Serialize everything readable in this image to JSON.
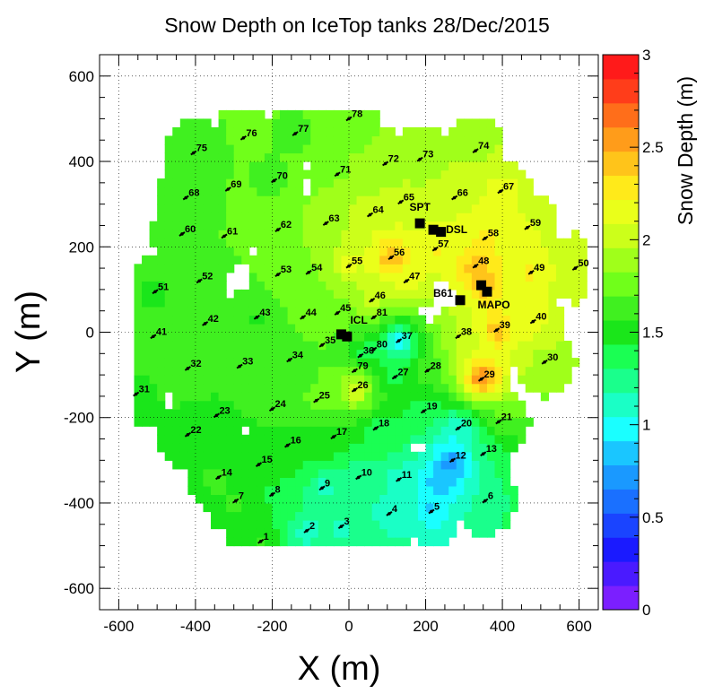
{
  "chart_data": {
    "type": "heatmap",
    "title": "Snow Depth on IceTop tanks 28/Dec/2015",
    "xlabel": "X (m)",
    "ylabel": "Y (m)",
    "zlabel": "Snow Depth (m)",
    "xlim": [
      -650,
      650
    ],
    "ylim": [
      -650,
      650
    ],
    "zlim": [
      0,
      3
    ],
    "x_ticks": [
      -600,
      -400,
      -200,
      0,
      200,
      400,
      600
    ],
    "y_ticks": [
      -600,
      -400,
      -200,
      0,
      200,
      400,
      600
    ],
    "z_ticks": [
      0,
      0.5,
      1,
      1.5,
      2,
      2.5,
      3
    ],
    "grid": true,
    "colorbar": "right",
    "stations": [
      {
        "id": "1",
        "x": -230,
        "y": -490,
        "depth": 1.6
      },
      {
        "id": "2",
        "x": -110,
        "y": -465,
        "depth": 1.0
      },
      {
        "id": "3",
        "x": -20,
        "y": -455,
        "depth": 1.1
      },
      {
        "id": "4",
        "x": 105,
        "y": -425,
        "depth": 1.0
      },
      {
        "id": "5",
        "x": 215,
        "y": -420,
        "depth": 0.8
      },
      {
        "id": "6",
        "x": 355,
        "y": -395,
        "depth": 1.2
      },
      {
        "id": "7",
        "x": -295,
        "y": -395,
        "depth": 1.6
      },
      {
        "id": "8",
        "x": -200,
        "y": -380,
        "depth": 1.4
      },
      {
        "id": "9",
        "x": -70,
        "y": -365,
        "depth": 1.0
      },
      {
        "id": "10",
        "x": 25,
        "y": -340,
        "depth": 1.1
      },
      {
        "id": "11",
        "x": 130,
        "y": -345,
        "depth": 1.0
      },
      {
        "id": "12",
        "x": 270,
        "y": -300,
        "depth": 0.5
      },
      {
        "id": "13",
        "x": 350,
        "y": -285,
        "depth": 1.3
      },
      {
        "id": "14",
        "x": -340,
        "y": -340,
        "depth": 1.6
      },
      {
        "id": "15",
        "x": -235,
        "y": -310,
        "depth": 1.4
      },
      {
        "id": "16",
        "x": -160,
        "y": -265,
        "depth": 1.5
      },
      {
        "id": "17",
        "x": -40,
        "y": -245,
        "depth": 1.5
      },
      {
        "id": "18",
        "x": 70,
        "y": -225,
        "depth": 1.2
      },
      {
        "id": "19",
        "x": 195,
        "y": -185,
        "depth": 1.3
      },
      {
        "id": "20",
        "x": 285,
        "y": -225,
        "depth": 1.0
      },
      {
        "id": "21",
        "x": 390,
        "y": -210,
        "depth": 1.7
      },
      {
        "id": "22",
        "x": -420,
        "y": -240,
        "depth": 1.5
      },
      {
        "id": "23",
        "x": -345,
        "y": -195,
        "depth": 1.5
      },
      {
        "id": "24",
        "x": -200,
        "y": -180,
        "depth": 1.6
      },
      {
        "id": "25",
        "x": -85,
        "y": -160,
        "depth": 1.8
      },
      {
        "id": "26",
        "x": 15,
        "y": -135,
        "depth": 2.3
      },
      {
        "id": "27",
        "x": 120,
        "y": -105,
        "depth": 1.3
      },
      {
        "id": "28",
        "x": 205,
        "y": -90,
        "depth": 1.7
      },
      {
        "id": "29",
        "x": 345,
        "y": -110,
        "depth": 2.8
      },
      {
        "id": "30",
        "x": 510,
        "y": -70,
        "depth": 1.9
      },
      {
        "id": "31",
        "x": -555,
        "y": -145,
        "depth": 1.5
      },
      {
        "id": "32",
        "x": -420,
        "y": -85,
        "depth": 1.6
      },
      {
        "id": "33",
        "x": -285,
        "y": -80,
        "depth": 1.6
      },
      {
        "id": "34",
        "x": -155,
        "y": -65,
        "depth": 1.7
      },
      {
        "id": "35",
        "x": -70,
        "y": -30,
        "depth": 1.7
      },
      {
        "id": "36",
        "x": 30,
        "y": -55,
        "depth": 1.2
      },
      {
        "id": "37",
        "x": 130,
        "y": -20,
        "depth": 0.7
      },
      {
        "id": "38",
        "x": 285,
        "y": -10,
        "depth": 2.0
      },
      {
        "id": "39",
        "x": 385,
        "y": 5,
        "depth": 2.6
      },
      {
        "id": "40",
        "x": 480,
        "y": 25,
        "depth": 2.2
      },
      {
        "id": "41",
        "x": -510,
        "y": -10,
        "depth": 1.6
      },
      {
        "id": "42",
        "x": -375,
        "y": 20,
        "depth": 1.6
      },
      {
        "id": "43",
        "x": -240,
        "y": 35,
        "depth": 1.5
      },
      {
        "id": "44",
        "x": -120,
        "y": 35,
        "depth": 1.7
      },
      {
        "id": "45",
        "x": -30,
        "y": 45,
        "depth": 1.8
      },
      {
        "id": "46",
        "x": 60,
        "y": 75,
        "depth": 2.2
      },
      {
        "id": "47",
        "x": 150,
        "y": 120,
        "depth": 2.3
      },
      {
        "id": "48",
        "x": 330,
        "y": 155,
        "depth": 2.6
      },
      {
        "id": "49",
        "x": 475,
        "y": 140,
        "depth": 2.3
      },
      {
        "id": "50",
        "x": 590,
        "y": 150,
        "depth": 2.0
      },
      {
        "id": "51",
        "x": -505,
        "y": 95,
        "depth": 1.5
      },
      {
        "id": "52",
        "x": -390,
        "y": 120,
        "depth": 1.6
      },
      {
        "id": "53",
        "x": -185,
        "y": 135,
        "depth": 1.7
      },
      {
        "id": "54",
        "x": -105,
        "y": 140,
        "depth": 1.8
      },
      {
        "id": "55",
        "x": 0,
        "y": 155,
        "depth": 2.3
      },
      {
        "id": "56",
        "x": 110,
        "y": 175,
        "depth": 2.6
      },
      {
        "id": "57",
        "x": 225,
        "y": 195,
        "depth": 2.3
      },
      {
        "id": "58",
        "x": 355,
        "y": 220,
        "depth": 2.3
      },
      {
        "id": "59",
        "x": 465,
        "y": 245,
        "depth": 2.1
      },
      {
        "id": "60",
        "x": -435,
        "y": 230,
        "depth": 1.7
      },
      {
        "id": "61",
        "x": -325,
        "y": 225,
        "depth": 1.7
      },
      {
        "id": "62",
        "x": -185,
        "y": 240,
        "depth": 1.8
      },
      {
        "id": "63",
        "x": -60,
        "y": 255,
        "depth": 2.0
      },
      {
        "id": "64",
        "x": 55,
        "y": 275,
        "depth": 2.1
      },
      {
        "id": "65",
        "x": 135,
        "y": 305,
        "depth": 2.1
      },
      {
        "id": "66",
        "x": 275,
        "y": 315,
        "depth": 2.1
      },
      {
        "id": "67",
        "x": 395,
        "y": 330,
        "depth": 2.2
      },
      {
        "id": "68",
        "x": -425,
        "y": 315,
        "depth": 1.6
      },
      {
        "id": "69",
        "x": -315,
        "y": 335,
        "depth": 1.7
      },
      {
        "id": "70",
        "x": -195,
        "y": 355,
        "depth": 1.6
      },
      {
        "id": "71",
        "x": -30,
        "y": 370,
        "depth": 1.8
      },
      {
        "id": "72",
        "x": 95,
        "y": 395,
        "depth": 1.8
      },
      {
        "id": "73",
        "x": 185,
        "y": 405,
        "depth": 1.8
      },
      {
        "id": "74",
        "x": 330,
        "y": 425,
        "depth": 1.9
      },
      {
        "id": "75",
        "x": -405,
        "y": 420,
        "depth": 1.6
      },
      {
        "id": "76",
        "x": -275,
        "y": 455,
        "depth": 1.7
      },
      {
        "id": "77",
        "x": -140,
        "y": 465,
        "depth": 1.6
      },
      {
        "id": "78",
        "x": 0,
        "y": 500,
        "depth": 1.7
      },
      {
        "id": "79",
        "x": 15,
        "y": -90,
        "depth": 1.8
      },
      {
        "id": "80",
        "x": 65,
        "y": -40,
        "depth": 1.2
      },
      {
        "id": "81",
        "x": 65,
        "y": 35,
        "depth": 1.9
      }
    ],
    "buildings": [
      {
        "id": "ICL",
        "label": "ICL",
        "points": [
          [
            -20,
            -5
          ],
          [
            -5,
            -10
          ]
        ]
      },
      {
        "id": "SPT",
        "label": "SPT",
        "points": [
          [
            185,
            255
          ]
        ]
      },
      {
        "id": "DSL",
        "label": "DSL",
        "points": [
          [
            220,
            240
          ],
          [
            240,
            235
          ]
        ]
      },
      {
        "id": "B61",
        "label": "B61",
        "points": [
          [
            290,
            75
          ]
        ]
      },
      {
        "id": "MAPO",
        "label": "MAPO",
        "points": [
          [
            345,
            110
          ],
          [
            360,
            95
          ]
        ]
      }
    ],
    "low_spots": [
      {
        "x": 120,
        "y": -20,
        "depth": 0.7
      },
      {
        "x": 270,
        "y": -305,
        "depth": 0.5
      },
      {
        "x": 230,
        "y": -350,
        "depth": 0.65
      },
      {
        "x": 280,
        "y": -230,
        "depth": 0.9
      }
    ],
    "high_spots": [
      {
        "x": 345,
        "y": -105,
        "depth": 2.8
      },
      {
        "x": 350,
        "y": 110,
        "depth": 2.6
      },
      {
        "x": 110,
        "y": 170,
        "depth": 2.6
      },
      {
        "x": 20,
        "y": -130,
        "depth": 2.3
      }
    ]
  },
  "colors": {
    "palette": [
      "#7b1fff",
      "#4a1aff",
      "#1a1aff",
      "#1a44ff",
      "#1a70ff",
      "#1a99ff",
      "#1ac6ff",
      "#1affff",
      "#1affc6",
      "#1aff8c",
      "#1aff53",
      "#1ae61a",
      "#40f020",
      "#70ff1a",
      "#a0ff1a",
      "#ccff1a",
      "#eaff1a",
      "#ffea1a",
      "#ffc41a",
      "#ff9c1a",
      "#ff6e1a",
      "#ff3d1a",
      "#ff1a1a"
    ]
  }
}
